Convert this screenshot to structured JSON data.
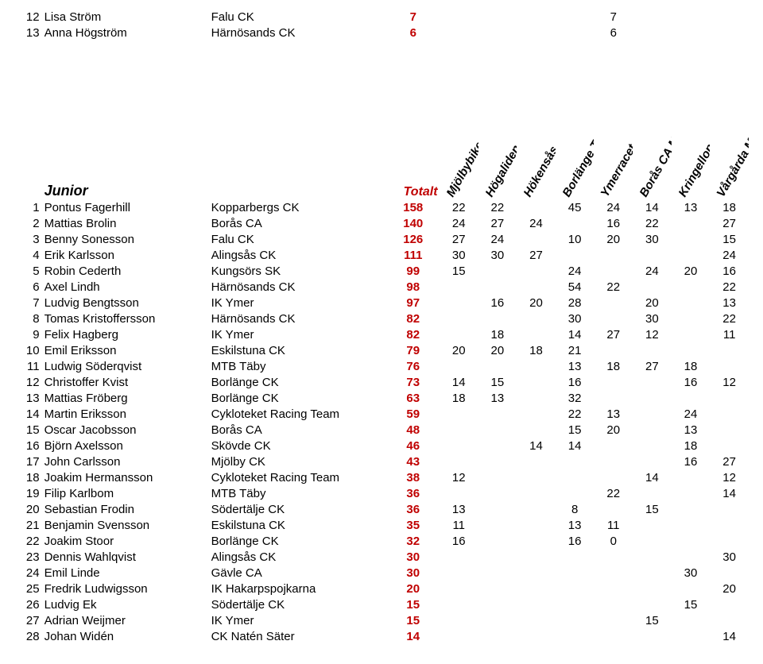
{
  "colors": {
    "accent": "#c00000",
    "text": "#000000",
    "background": "#ffffff"
  },
  "columns": {
    "total_label": "Totalt",
    "events": [
      "Mjölbybiken",
      "Högaliden",
      "Hökensås",
      "Borlänge Tour",
      "Ymerracet",
      "Borås CA MTB",
      "Kringelloppet",
      "Vårgårda MTB"
    ]
  },
  "section_label": "Junior",
  "top_rows": [
    {
      "pos": "12",
      "name": "Lisa Ström",
      "club": "Falu CK",
      "total": "7",
      "ev": [
        "",
        "",
        "",
        "",
        "7",
        "",
        "",
        ""
      ]
    },
    {
      "pos": "13",
      "name": "Anna Högström",
      "club": "Härnösands CK",
      "total": "6",
      "ev": [
        "",
        "",
        "",
        "",
        "6",
        "",
        "",
        ""
      ]
    }
  ],
  "rows": [
    {
      "pos": "1",
      "name": "Pontus Fagerhill",
      "club": "Kopparbergs CK",
      "total": "158",
      "ev": [
        "22",
        "22",
        "",
        "45",
        "24",
        "14",
        "13",
        "18"
      ]
    },
    {
      "pos": "2",
      "name": "Mattias Brolin",
      "club": "Borås CA",
      "total": "140",
      "ev": [
        "24",
        "27",
        "24",
        "",
        "16",
        "22",
        "",
        "27"
      ]
    },
    {
      "pos": "3",
      "name": "Benny Sonesson",
      "club": "Falu CK",
      "total": "126",
      "ev": [
        "27",
        "24",
        "",
        "10",
        "20",
        "30",
        "",
        "15"
      ]
    },
    {
      "pos": "4",
      "name": "Erik Karlsson",
      "club": "Alingsås CK",
      "total": "111",
      "ev": [
        "30",
        "30",
        "27",
        "",
        "",
        "",
        "",
        "24"
      ]
    },
    {
      "pos": "5",
      "name": "Robin Cederth",
      "club": "Kungsörs SK",
      "total": "99",
      "ev": [
        "15",
        "",
        "",
        "24",
        "",
        "24",
        "20",
        "16"
      ]
    },
    {
      "pos": "6",
      "name": "Axel Lindh",
      "club": "Härnösands CK",
      "total": "98",
      "ev": [
        "",
        "",
        "",
        "54",
        "22",
        "",
        "",
        "22"
      ]
    },
    {
      "pos": "7",
      "name": "Ludvig Bengtsson",
      "club": "IK Ymer",
      "total": "97",
      "ev": [
        "",
        "16",
        "20",
        "28",
        "",
        "20",
        "",
        "13"
      ]
    },
    {
      "pos": "8",
      "name": "Tomas Kristoffersson",
      "club": "Härnösands CK",
      "total": "82",
      "ev": [
        "",
        "",
        "",
        "30",
        "",
        "30",
        "",
        "22"
      ]
    },
    {
      "pos": "9",
      "name": "Felix Hagberg",
      "club": "IK Ymer",
      "total": "82",
      "ev": [
        "",
        "18",
        "",
        "14",
        "27",
        "12",
        "",
        "11"
      ]
    },
    {
      "pos": "10",
      "name": "Emil Eriksson",
      "club": "Eskilstuna CK",
      "total": "79",
      "ev": [
        "20",
        "20",
        "18",
        "21",
        "",
        "",
        "",
        ""
      ]
    },
    {
      "pos": "11",
      "name": "Ludwig Söderqvist",
      "club": "MTB Täby",
      "total": "76",
      "ev": [
        "",
        "",
        "",
        "13",
        "18",
        "27",
        "18",
        ""
      ]
    },
    {
      "pos": "12",
      "name": "Christoffer Kvist",
      "club": "Borlänge CK",
      "total": "73",
      "ev": [
        "14",
        "15",
        "",
        "16",
        "",
        "",
        "16",
        "12"
      ]
    },
    {
      "pos": "13",
      "name": "Mattias Fröberg",
      "club": "Borlänge CK",
      "total": "63",
      "ev": [
        "18",
        "13",
        "",
        "32",
        "",
        "",
        "",
        ""
      ]
    },
    {
      "pos": "14",
      "name": "Martin Eriksson",
      "club": "Cykloteket Racing Team",
      "total": "59",
      "ev": [
        "",
        "",
        "",
        "22",
        "13",
        "",
        "24",
        ""
      ]
    },
    {
      "pos": "15",
      "name": "Oscar Jacobsson",
      "club": "Borås CA",
      "total": "48",
      "ev": [
        "",
        "",
        "",
        "15",
        "20",
        "",
        "13",
        ""
      ]
    },
    {
      "pos": "16",
      "name": "Björn Axelsson",
      "club": "Skövde CK",
      "total": "46",
      "ev": [
        "",
        "",
        "14",
        "14",
        "",
        "",
        "18",
        ""
      ]
    },
    {
      "pos": "17",
      "name": "John Carlsson",
      "club": "Mjölby CK",
      "total": "43",
      "ev": [
        "",
        "",
        "",
        "",
        "",
        "",
        "16",
        "27"
      ]
    },
    {
      "pos": "18",
      "name": "Joakim Hermansson",
      "club": "Cykloteket Racing Team",
      "total": "38",
      "ev": [
        "12",
        "",
        "",
        "",
        "",
        "14",
        "",
        "12"
      ]
    },
    {
      "pos": "19",
      "name": "Filip Karlbom",
      "club": "MTB Täby",
      "total": "36",
      "ev": [
        "",
        "",
        "",
        "",
        "22",
        "",
        "",
        "14"
      ]
    },
    {
      "pos": "20",
      "name": "Sebastian Frodin",
      "club": "Södertälje CK",
      "total": "36",
      "ev": [
        "13",
        "",
        "",
        "8",
        "",
        "15",
        "",
        ""
      ]
    },
    {
      "pos": "21",
      "name": "Benjamin Svensson",
      "club": "Eskilstuna CK",
      "total": "35",
      "ev": [
        "11",
        "",
        "",
        "13",
        "11",
        "",
        "",
        ""
      ]
    },
    {
      "pos": "22",
      "name": "Joakim Stoor",
      "club": "Borlänge CK",
      "total": "32",
      "ev": [
        "16",
        "",
        "",
        "16",
        "0",
        "",
        "",
        ""
      ]
    },
    {
      "pos": "23",
      "name": "Dennis Wahlqvist",
      "club": "Alingsås CK",
      "total": "30",
      "ev": [
        "",
        "",
        "",
        "",
        "",
        "",
        "",
        "30"
      ]
    },
    {
      "pos": "24",
      "name": "Emil Linde",
      "club": "Gävle CA",
      "total": "30",
      "ev": [
        "",
        "",
        "",
        "",
        "",
        "",
        "30",
        ""
      ]
    },
    {
      "pos": "25",
      "name": "Fredrik Ludwigsson",
      "club": "IK Hakarpspojkarna",
      "total": "20",
      "ev": [
        "",
        "",
        "",
        "",
        "",
        "",
        "",
        "20"
      ]
    },
    {
      "pos": "26",
      "name": "Ludvig Ek",
      "club": "Södertälje CK",
      "total": "15",
      "ev": [
        "",
        "",
        "",
        "",
        "",
        "",
        "15",
        ""
      ]
    },
    {
      "pos": "27",
      "name": "Adrian Weijmer",
      "club": "IK Ymer",
      "total": "15",
      "ev": [
        "",
        "",
        "",
        "",
        "",
        "15",
        "",
        ""
      ]
    },
    {
      "pos": "28",
      "name": "Johan Widén",
      "club": "CK Natén Säter",
      "total": "14",
      "ev": [
        "",
        "",
        "",
        "",
        "",
        "",
        "",
        "14"
      ]
    }
  ]
}
